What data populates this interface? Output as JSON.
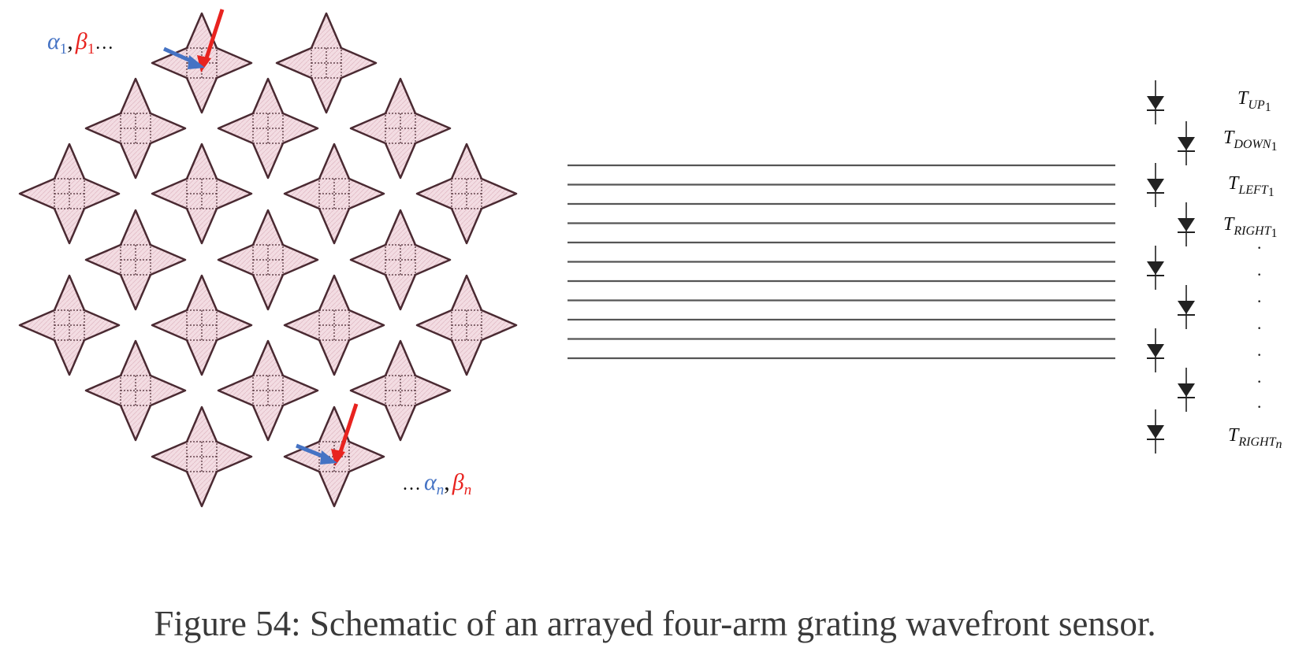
{
  "caption": "Figure 54: Schematic of an arrayed four-arm grating wavefront sensor.",
  "colors": {
    "star_fill": "#f3dde3",
    "star_stroke": "#4a2a32",
    "alpha_blue": "#4573c4",
    "beta_red": "#e8231f",
    "waveguide": "#555555",
    "detector": "#222222"
  },
  "top_annotation": {
    "alpha": "α",
    "alpha_sub": "1",
    "comma": ",",
    "beta": "β",
    "beta_sub": "1",
    "ellipsis": "…"
  },
  "bottom_annotation": {
    "ellipsis": "…",
    "alpha": "α",
    "alpha_sub": "n",
    "comma": ",",
    "beta": "β",
    "beta_sub": "n"
  },
  "detector_labels": [
    {
      "main": "T",
      "sub": "UP",
      "subsub": "1"
    },
    {
      "main": "T",
      "sub": "DOWN",
      "subsub": "1"
    },
    {
      "main": "T",
      "sub": "LEFT",
      "subsub": "1"
    },
    {
      "main": "T",
      "sub": "RIGHT",
      "subsub": "1"
    },
    {
      "main": "T",
      "sub": "RIGHT",
      "subsub": "n"
    }
  ],
  "vertical_dots": "·"
}
